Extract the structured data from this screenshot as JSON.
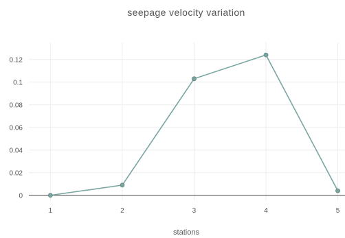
{
  "chart_data": {
    "type": "line",
    "title": "seepage velocity variation",
    "xlabel": "stations",
    "ylabel": "",
    "x": [
      1,
      2,
      3,
      4,
      5
    ],
    "series": [
      {
        "values": [
          0.0,
          0.009,
          0.103,
          0.124,
          0.004
        ],
        "color": "#7aa6a1"
      }
    ],
    "xlim": [
      0.7,
      5.1
    ],
    "ylim": [
      -0.005,
      0.135
    ],
    "x_ticks": [
      1,
      2,
      3,
      4,
      5
    ],
    "y_ticks": [
      0,
      0.02,
      0.04,
      0.06,
      0.08,
      0.1,
      0.12
    ],
    "y_tick_labels": [
      "0",
      "0.02",
      "0.04",
      "0.06",
      "0.08",
      "0.1",
      "0.12"
    ],
    "grid": true,
    "legend": "none"
  }
}
